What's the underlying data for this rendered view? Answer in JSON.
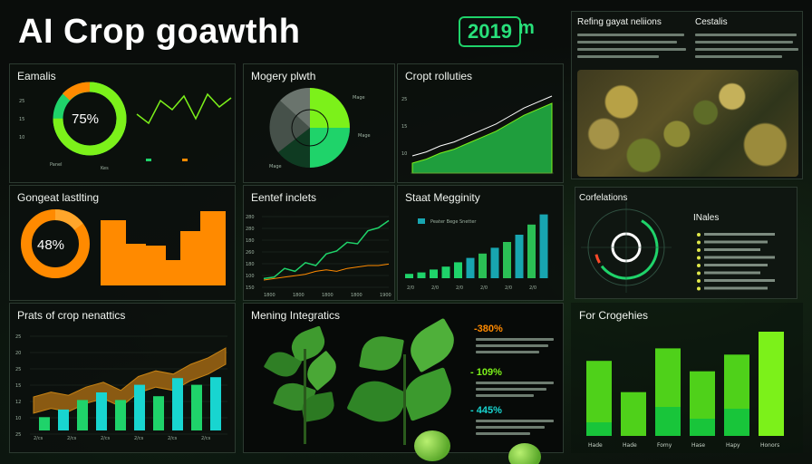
{
  "header": {
    "title": "AI Crop goawthh",
    "year": "2019",
    "year_suffix": "m"
  },
  "colors": {
    "green": "#1fd36a",
    "lime": "#7cf11a",
    "orange": "#ff8a00",
    "cyan": "#18d5d0",
    "dark": "#0a0d0b"
  },
  "panels": {
    "earnals": {
      "title": "Eamalis",
      "donut_label": "75%",
      "donut_value": 75,
      "legend": [
        "Panel",
        "Kes"
      ],
      "sparkline": [
        40,
        30,
        55,
        45,
        60,
        35,
        62,
        48,
        58
      ]
    },
    "mogery": {
      "title": "Mogery plwth",
      "slices": [
        35,
        20,
        15,
        30
      ]
    },
    "cropt": {
      "title": "Cropt rolluties",
      "series": [
        10,
        14,
        20,
        24,
        30,
        36,
        42,
        50,
        58,
        64,
        70
      ]
    },
    "gongeat": {
      "title": "Gongeat lastlting",
      "donut_label": "48%",
      "donut_value": 48,
      "bars": [
        72,
        46,
        44,
        28,
        60,
        82
      ]
    },
    "eentef": {
      "title": "Eentef inclets",
      "ylabels": [
        "280",
        "280",
        "180",
        "260",
        "180",
        "100",
        "150"
      ],
      "xlabels": [
        "1800",
        "1800",
        "1800",
        "1800",
        "1900"
      ],
      "green": [
        12,
        14,
        26,
        22,
        34,
        30,
        46,
        50,
        62,
        60,
        78,
        82,
        92
      ],
      "orange": [
        10,
        12,
        14,
        16,
        18,
        22,
        24,
        22,
        26,
        28,
        30,
        30,
        32
      ]
    },
    "staat": {
      "title": "Staat Megginity",
      "legend": "Peater Bege Snetter",
      "bars": [
        6,
        8,
        12,
        16,
        22,
        28,
        34,
        42,
        50,
        60,
        74,
        88
      ],
      "xlabels": [
        "2/0",
        "2/0",
        "2/0",
        "2/0",
        "2/0",
        "2/0"
      ]
    },
    "prats": {
      "title": "Prats of crop nenattics",
      "ylabels": [
        "25",
        "20",
        "25",
        "15",
        "12",
        "10",
        "25"
      ],
      "xlabels": [
        "2/cs",
        "2/cs",
        "2/cs",
        "2/cs",
        "2/cs",
        "2/cs"
      ],
      "area": [
        30,
        36,
        32,
        42,
        48,
        38,
        55,
        62,
        58,
        70,
        78,
        90
      ],
      "bars": [
        14,
        22,
        32,
        40,
        32,
        48,
        36,
        55,
        48,
        56
      ]
    },
    "mening": {
      "title": "Mening Integratics",
      "stats": [
        {
          "value": "-380%",
          "color": "#ff8a00"
        },
        {
          "value": "- 109%",
          "color": "#7cf11a"
        },
        {
          "value": "- 445%",
          "color": "#18d5d0"
        }
      ]
    },
    "for": {
      "title": "For Crogehies",
      "bars": [
        {
          "total": 72,
          "inner": 15,
          "label": "Hade"
        },
        {
          "total": 42,
          "inner": 0,
          "label": "Hade"
        },
        {
          "total": 84,
          "inner": 32,
          "label": "Fomy"
        },
        {
          "total": 62,
          "inner": 19,
          "label": "Hase"
        },
        {
          "total": 78,
          "inner": 30,
          "label": "Hapy"
        },
        {
          "total": 100,
          "inner": 0,
          "label": "Honors"
        }
      ]
    },
    "refing": {
      "title": "Refing gayat neliions",
      "subtitle": "Cestalis"
    },
    "corfelations": {
      "title": "Corfelations",
      "side_title": "INales",
      "items": 8
    }
  }
}
